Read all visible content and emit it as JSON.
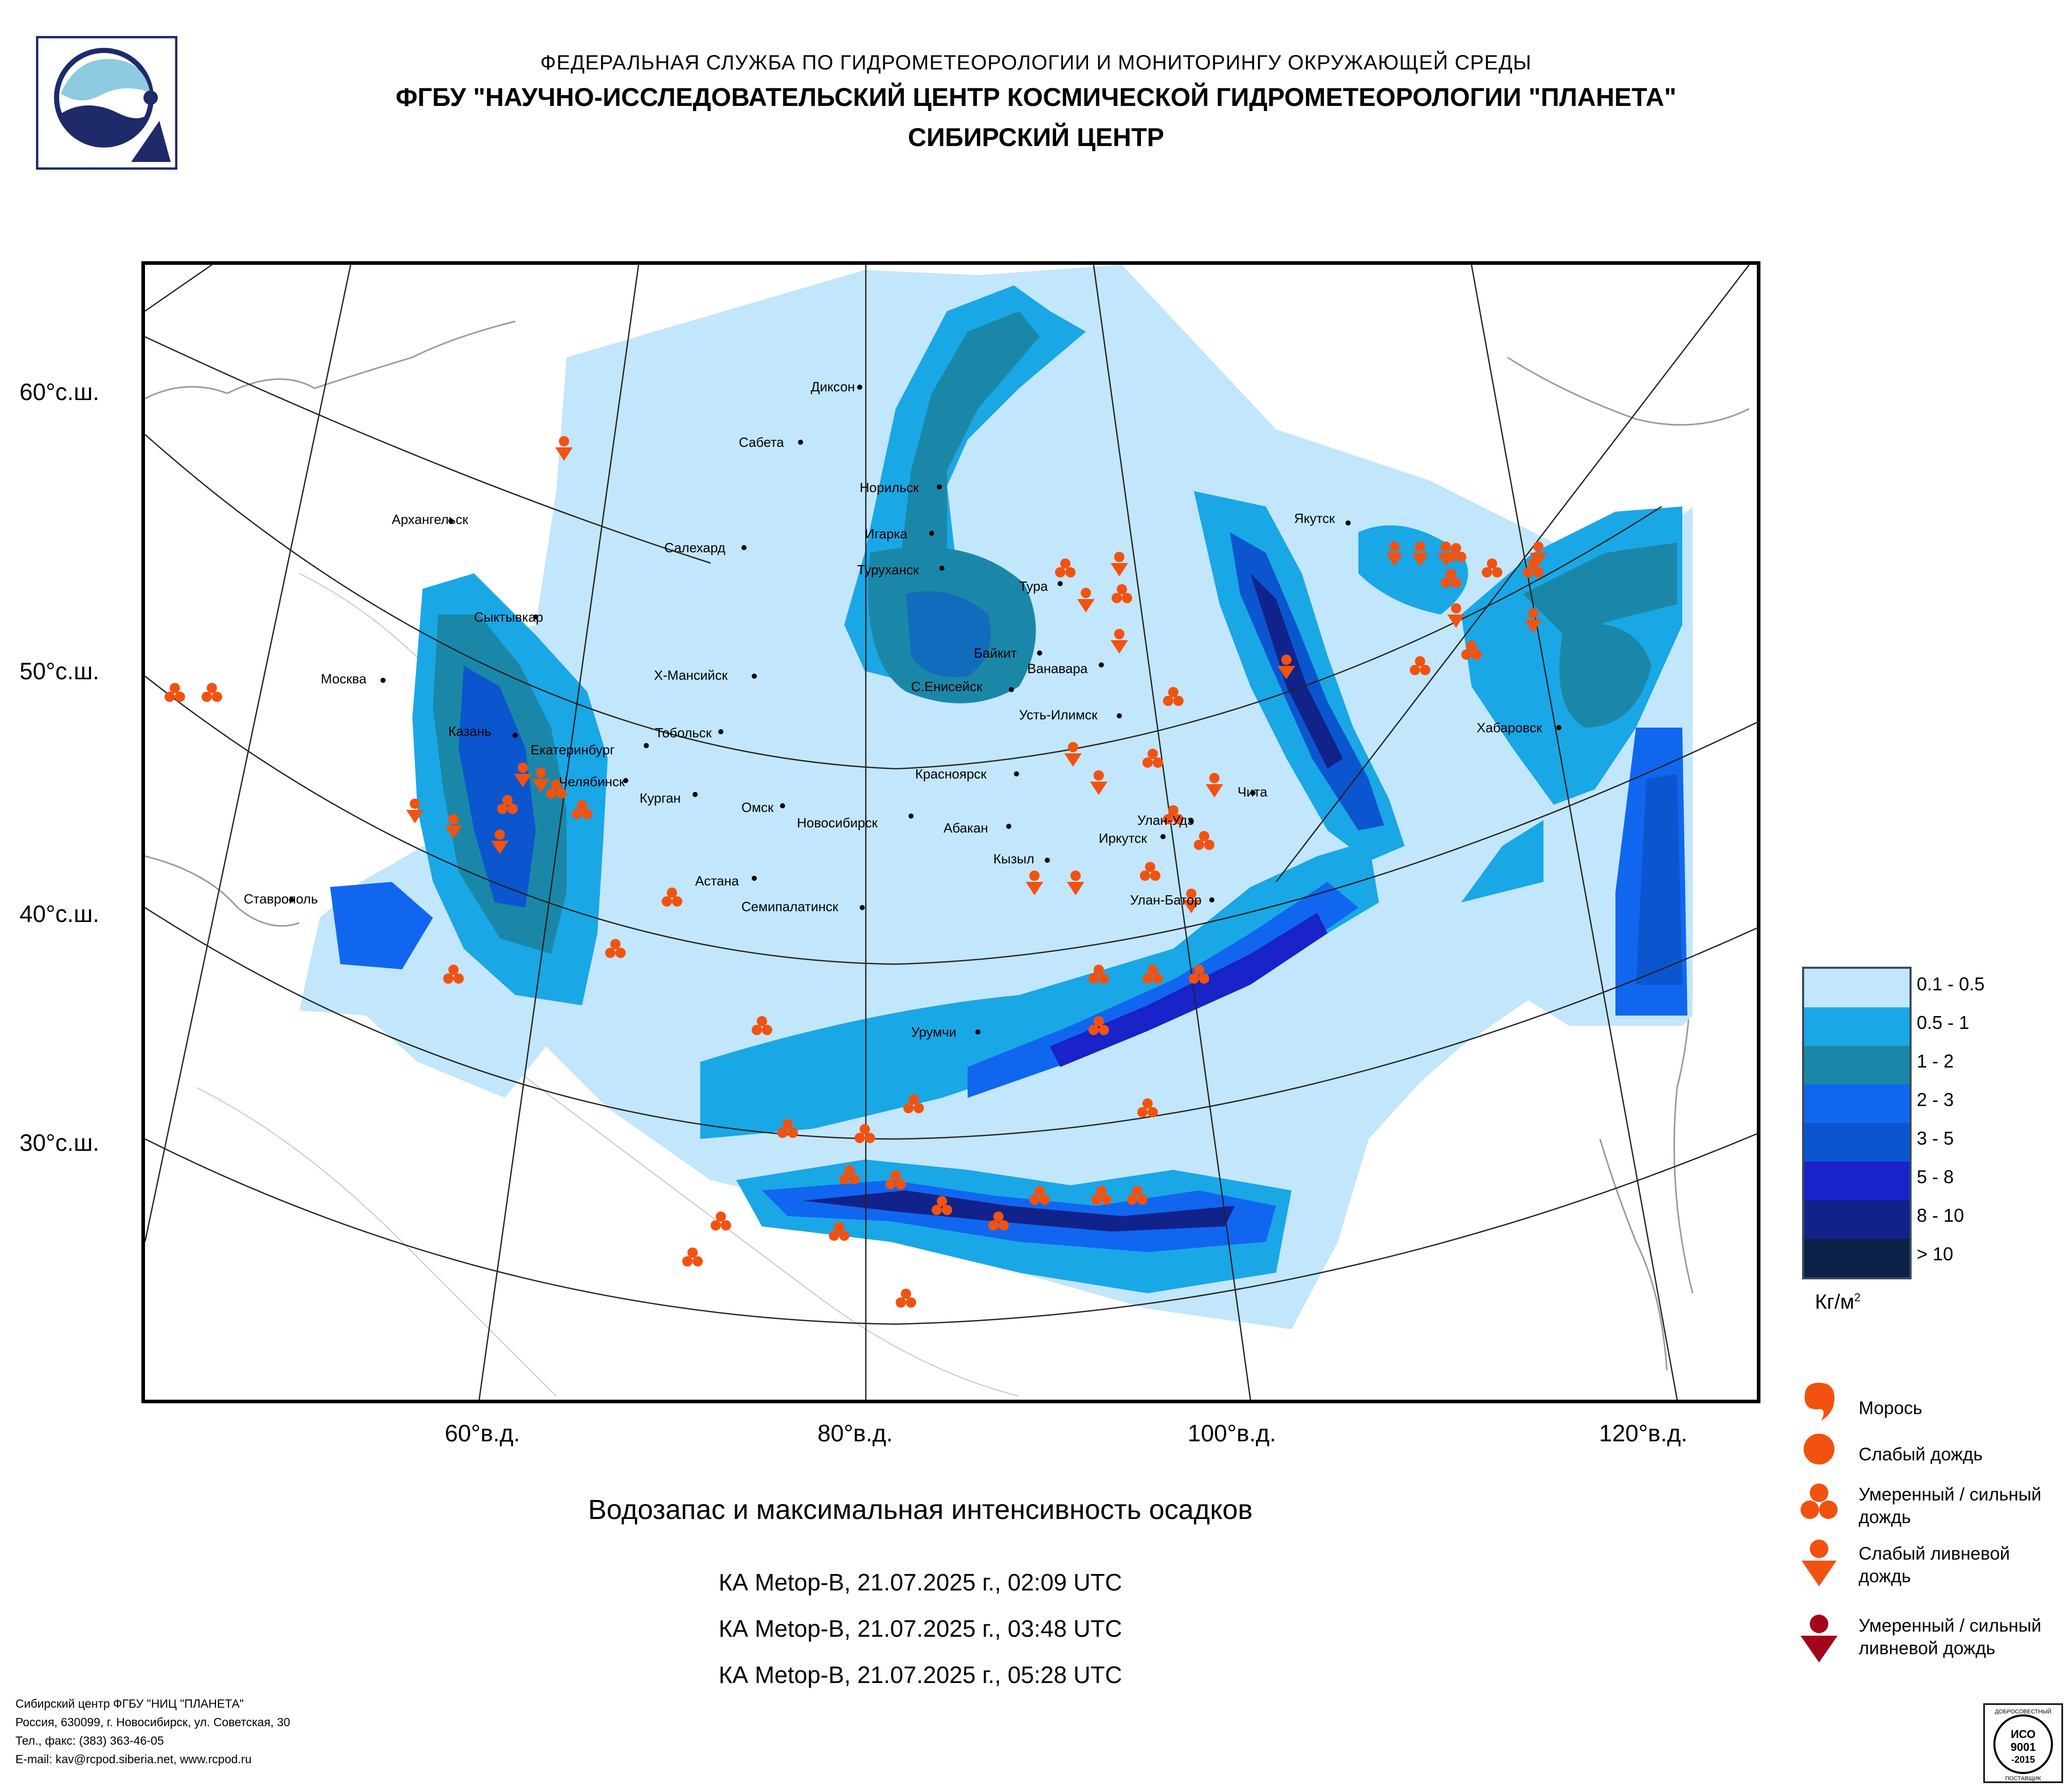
{
  "header": {
    "line1": "ФЕДЕРАЛЬНАЯ СЛУЖБА ПО ГИДРОМЕТЕОРОЛОГИИ И МОНИТОРИНГУ ОКРУЖАЮЩЕЙ СРЕДЫ",
    "line2": "ФГБУ \"НАУЧНО-ИССЛЕДОВАТЕЛЬСКИЙ ЦЕНТР КОСМИЧЕСКОЙ ГИДРОМЕТЕОРОЛОГИИ \"ПЛАНЕТА\"",
    "line3": "СИБИРСКИЙ ЦЕНТР"
  },
  "map": {
    "lat_labels": [
      "60°с.ш.",
      "50°с.ш.",
      "40°с.ш.",
      "30°с.ш."
    ],
    "lon_labels": [
      "60°в.д.",
      "80°в.д.",
      "100°в.д.",
      "120°в.д."
    ],
    "cities": {
      "dikson": "Диксон",
      "sabeta": "Сабета",
      "norilsk": "Норильск",
      "igarka": "Игарка",
      "salekhard": "Салехард",
      "turukhansk": "Туруханск",
      "tura": "Тура",
      "arkhangelsk": "Архангельск",
      "yakutsk": "Якутск",
      "syktyvkar": "Сыктывкар",
      "baykit": "Байкит",
      "vanavara": "Ванавара",
      "moskva": "Москва",
      "khmansiysk": "Х-Мансийск",
      "senisseysk": "С.Енисейск",
      "ustilimsk": "Усть-Илимск",
      "kazan": "Казань",
      "ekaterinburg": "Екатеринбург",
      "tobolsk": "Тобольск",
      "khabarovsk": "Хабаровск",
      "chelyabinsk": "Челябинск",
      "krasnoyarsk": "Красноярск",
      "kurgan": "Курган",
      "chita": "Чита",
      "omsk": "Омск",
      "novosibirsk": "Новосибирск",
      "abakan": "Абакан",
      "ulanude": "Улан-Удэ",
      "irkutsk": "Иркутск",
      "kyzyl": "Кызыл",
      "astana": "Астана",
      "stavropol": "Ставрополь",
      "semipalatinsk": "Семипалатинск",
      "ulanbator": "Улан-Батор",
      "urumchi": "Урумчи"
    }
  },
  "legend": {
    "classes": [
      {
        "label": "0.1 - 0.5",
        "color": "#c2e6fb"
      },
      {
        "label": "0.5 - 1",
        "color": "#1aa7e6"
      },
      {
        "label": "1 - 2",
        "color": "#1b87a8"
      },
      {
        "label": "2 - 3",
        "color": "#1166f0"
      },
      {
        "label": "3 - 5",
        "color": "#0b56cf"
      },
      {
        "label": "5 - 8",
        "color": "#1a22c9"
      },
      {
        "label": "8 - 10",
        "color": "#11238a"
      },
      {
        "label": "> 10",
        "color": "#0b2148"
      }
    ],
    "units_base": "Кг/м",
    "units_sup": "2",
    "symbols": [
      {
        "label": "Морось",
        "color": "#f2520f"
      },
      {
        "label": "Слабый дождь",
        "color": "#f2520f"
      },
      {
        "label": "Умеренный / сильный\nдождь",
        "color": "#f2520f"
      },
      {
        "label": "Слабый ливневой\nдождь",
        "color": "#f2520f"
      },
      {
        "label": "Умеренный / сильный\nливневой дождь",
        "color": "#a3061c"
      }
    ]
  },
  "title": "Водозапас и максимальная интенсивность осадков",
  "satellite_passes": [
    "КА Metop-B, 21.07.2025 г., 02:09 UTC",
    "КА Metop-B, 21.07.2025 г., 03:48 UTC",
    "КА Metop-B, 21.07.2025 г., 05:28 UTC"
  ],
  "footer": {
    "line1": "Сибирский центр ФГБУ \"НИЦ \"ПЛАНЕТА\"",
    "line2": "Россия, 630099, г. Новосибирск, ул. Советская, 30",
    "line3": "Тел., факс: (383) 363-46-05",
    "line4": "E-mail: kav@rcpod.siberia.net, www.rcpod.ru"
  },
  "iso_badge": {
    "top": "ДОБРОСОВЕСТНЫЙ",
    "mid1": "ИСО",
    "mid2": "9001",
    "mid3": "-2015",
    "bottom": "ПОСТАВЩИК"
  }
}
